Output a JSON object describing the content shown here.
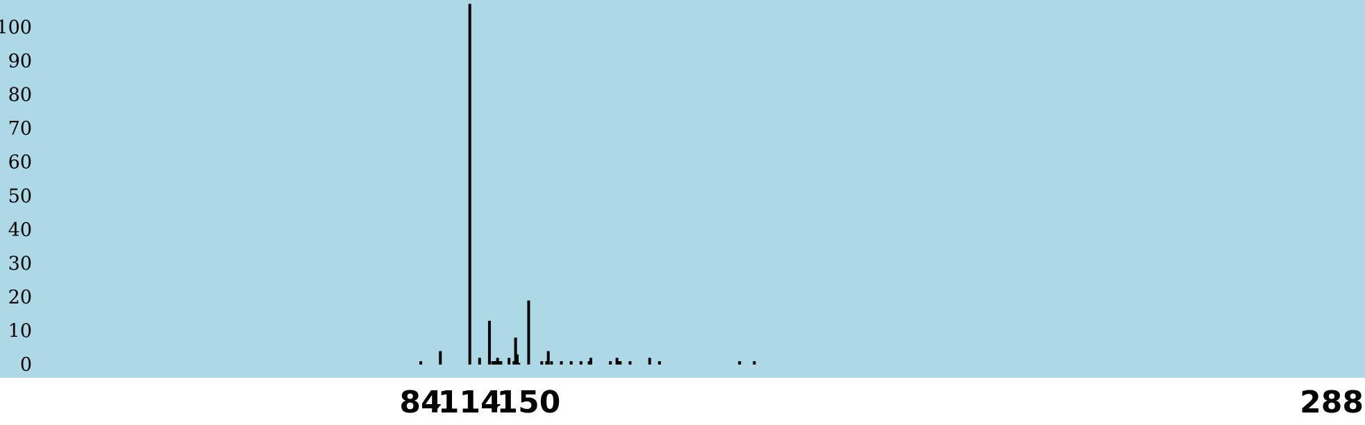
{
  "chart_data": {
    "type": "bar",
    "xlim": [
      0,
      288
    ],
    "ylim": [
      0,
      110
    ],
    "y_ticks": [
      "0",
      "10",
      "20",
      "30",
      "40",
      "50",
      "60",
      "70",
      "80",
      "90",
      "100"
    ],
    "x_ticks": [
      {
        "value": 84,
        "label": "84"
      },
      {
        "value": 114,
        "label": "114"
      },
      {
        "value": 150,
        "label": "150"
      },
      {
        "value": 288,
        "label": "288"
      }
    ],
    "plot_background": "#add8e6",
    "bar_color": "#000000",
    "x": [
      84,
      96,
      114,
      120,
      126,
      128,
      129,
      130,
      131,
      132,
      133,
      138,
      141,
      142,
      143,
      144,
      150,
      158,
      161,
      162,
      164,
      170,
      176,
      182,
      187,
      188,
      200,
      204,
      205,
      206,
      212,
      224,
      230,
      279,
      288
    ],
    "values": [
      1,
      4,
      107,
      2,
      13,
      1,
      1,
      1,
      2,
      1,
      1,
      2,
      1,
      8,
      3,
      0.5,
      19,
      1,
      1,
      4,
      1,
      1,
      1,
      1,
      1,
      2,
      1,
      2,
      1,
      1,
      1,
      2,
      1,
      1,
      1
    ]
  }
}
